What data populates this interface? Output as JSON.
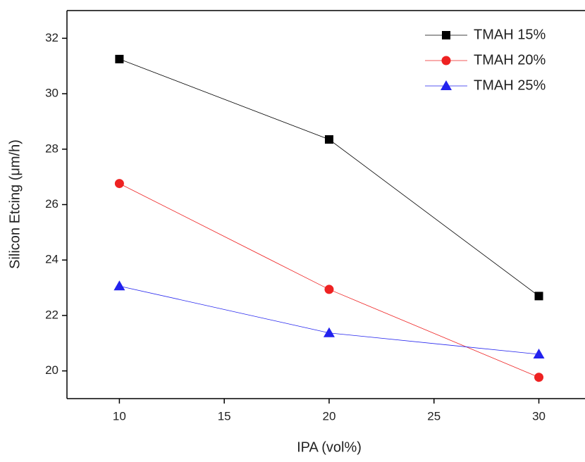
{
  "chart_data": {
    "type": "line",
    "x_label": "IPA (vol%)",
    "y_label": "Silicon Etcing (μm/h)",
    "x": [
      10,
      20,
      30
    ],
    "series": [
      {
        "name": "TMAH 15%",
        "color": "#000000",
        "marker": "square",
        "values": [
          31.25,
          28.35,
          22.7
        ]
      },
      {
        "name": "TMAH 20%",
        "color": "#ee2222",
        "marker": "circle",
        "values": [
          26.76,
          22.94,
          19.77
        ]
      },
      {
        "name": "TMAH 25%",
        "color": "#2222ee",
        "marker": "triangle",
        "values": [
          23.06,
          21.37,
          20.6
        ]
      }
    ],
    "xlim": [
      7.5,
      32.2
    ],
    "xticks": [
      10,
      15,
      20,
      25,
      30
    ],
    "ylim": [
      19,
      33
    ],
    "yticks": [
      20,
      22,
      24,
      26,
      28,
      30,
      32
    ],
    "legend": "top-right",
    "grid": false
  }
}
